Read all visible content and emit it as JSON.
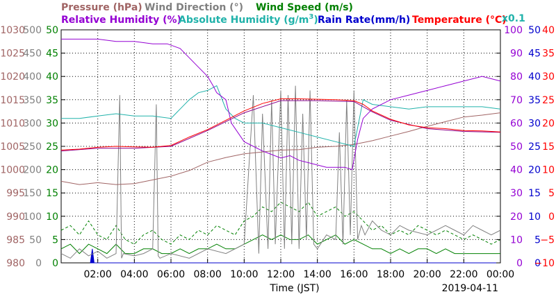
{
  "chart_data": {
    "type": "line",
    "header": {
      "row1": [
        {
          "text": "Pressure (hPa)",
          "color": "#a06464"
        },
        {
          "text": "Wind Direction (°)",
          "color": "#808080"
        },
        {
          "text": "Wind Speed (m/s)",
          "color": "#008000"
        }
      ],
      "row2": [
        {
          "text": "Relative Humidity (%)",
          "color": "#9400d3"
        },
        {
          "text": "Absolute Humidity (g/m",
          "sup": "3",
          "tail": ")",
          "color": "#20b2aa"
        },
        {
          "text": "Rain Rate(mm/h)",
          "color": "#0000cd"
        },
        {
          "text": "Temperature (°C)",
          "color": "#ff0000"
        }
      ],
      "multiplier": {
        "text": "x0.1",
        "color": "#20b2aa"
      }
    },
    "xlabel": "Time (JST)",
    "date": "2019-04-11",
    "xlim": [
      0,
      24
    ],
    "xticks": [
      {
        "t": 2,
        "label": "02:00"
      },
      {
        "t": 4,
        "label": "04:00"
      },
      {
        "t": 6,
        "label": "06:00"
      },
      {
        "t": 8,
        "label": "08:00"
      },
      {
        "t": 10,
        "label": "10:00"
      },
      {
        "t": 12,
        "label": "12:00"
      },
      {
        "t": 14,
        "label": "14:00"
      },
      {
        "t": 16,
        "label": "16:00"
      },
      {
        "t": 18,
        "label": "18:00"
      },
      {
        "t": 20,
        "label": "20:00"
      },
      {
        "t": 22,
        "label": "22:00"
      },
      {
        "t": 24,
        "label": "00:00"
      }
    ],
    "axes": {
      "pressure": {
        "color": "#a06464",
        "ticks": [
          "980",
          "985",
          "990",
          "995",
          "1000",
          "1005",
          "1010",
          "1015",
          "1020",
          "1025",
          "1030"
        ],
        "range": [
          980,
          1030
        ]
      },
      "wind_direction": {
        "color": "#808080",
        "ticks": [
          "0",
          "50",
          "100",
          "150",
          "200",
          "250",
          "300",
          "350",
          "400",
          "450",
          "500"
        ],
        "range": [
          0,
          500
        ]
      },
      "wind_speed": {
        "color": "#008000",
        "ticks": [
          "0",
          "5",
          "10",
          "15",
          "20",
          "25",
          "30",
          "35",
          "40",
          "45",
          "50"
        ],
        "range": [
          0,
          50
        ]
      },
      "relative_humidity": {
        "color": "#9400d3",
        "ticks": [
          "0",
          "10",
          "20",
          "30",
          "40",
          "50",
          "60",
          "70",
          "80",
          "90",
          "100"
        ],
        "range": [
          0,
          100
        ]
      },
      "rain_rate": {
        "color": "#0000cd",
        "ticks": [
          "0",
          "5",
          "10",
          "15",
          "20",
          "25",
          "30",
          "35",
          "40",
          "45",
          "50"
        ],
        "range": [
          0,
          50
        ]
      },
      "temperature": {
        "color": "#ff0000",
        "ticks": [
          "−10",
          "−5",
          "0",
          "5",
          "10",
          "15",
          "20",
          "25",
          "30",
          "35",
          "40"
        ],
        "range": [
          -10,
          40
        ]
      }
    },
    "grid": true,
    "series": [
      {
        "key": "pressure",
        "name": "Pressure (hPa)",
        "color": "#a06464",
        "axis": "pressure",
        "x": [
          0,
          1,
          2,
          3,
          4,
          5,
          6,
          7,
          8,
          9,
          10,
          11,
          12,
          13,
          14,
          15,
          16,
          17,
          18,
          19,
          20,
          21,
          22,
          23,
          24
        ],
        "y": [
          997.5,
          996.8,
          997.2,
          996.8,
          997.0,
          997.8,
          998.6,
          999.8,
          1001.6,
          1002.6,
          1003.4,
          1003.8,
          1004.2,
          1004.3,
          1004.8,
          1005.0,
          1005.4,
          1006.2,
          1007.2,
          1008.2,
          1009.3,
          1010.3,
          1011.3,
          1011.7,
          1012.2
        ]
      },
      {
        "key": "relative_humidity",
        "name": "Relative Humidity (%)",
        "color": "#9400d3",
        "axis": "relative_humidity",
        "x": [
          0,
          1,
          2,
          3,
          4,
          5,
          5.8,
          6.5,
          7.0,
          7.5,
          8.0,
          8.3,
          8.5,
          9.0,
          9.3,
          10.0,
          10.5,
          11.0,
          12.0,
          12.5,
          13.0,
          13.5,
          14.0,
          14.5,
          15.0,
          15.5,
          15.9,
          16.2,
          16.5,
          17,
          18,
          19,
          20,
          21,
          22,
          23,
          24
        ],
        "y": [
          96,
          96,
          96,
          95,
          95,
          94,
          94,
          92,
          88,
          84,
          80,
          76,
          73,
          70,
          60,
          52,
          50,
          48,
          45,
          46,
          44,
          43,
          42,
          41,
          41,
          41,
          40,
          53,
          62,
          66,
          70,
          72,
          74,
          76,
          78,
          80,
          78
        ]
      },
      {
        "key": "absolute_humidity",
        "name": "Absolute Humidity (g/m3) x0.1",
        "color": "#20b2aa",
        "axis": "relative_humidity",
        "x": [
          0,
          1,
          2,
          3,
          4,
          5,
          6,
          6.5,
          7,
          7.5,
          8,
          8.5,
          9,
          9.5,
          10,
          11,
          12,
          13,
          14,
          15,
          15.5,
          16,
          16.5,
          17,
          18,
          19,
          20,
          21,
          22,
          23,
          24
        ],
        "y": [
          62,
          62,
          63,
          64,
          63,
          63,
          62,
          66,
          70,
          73,
          74,
          76,
          66,
          62,
          60,
          60,
          58,
          56,
          54,
          52,
          51,
          50,
          70,
          68,
          67,
          66,
          67,
          67,
          67,
          67,
          66
        ]
      },
      {
        "key": "temperature",
        "name": "Temperature (°C)",
        "color": "#ff0000",
        "axis": "temperature",
        "x": [
          0,
          1,
          2,
          3,
          4,
          5,
          6,
          7,
          8,
          9,
          10,
          11,
          12,
          13,
          14,
          15,
          16,
          16.5,
          17,
          18,
          19,
          20,
          21,
          22,
          23,
          24
        ],
        "y": [
          14.2,
          14.4,
          14.8,
          15.0,
          14.9,
          14.8,
          15.2,
          17.0,
          18.6,
          20.6,
          22.6,
          24.2,
          25.2,
          25.2,
          25.1,
          25.0,
          24.8,
          24.0,
          22.6,
          20.8,
          19.6,
          19.0,
          18.8,
          18.4,
          18.3,
          18.1
        ]
      },
      {
        "key": "temperature_2",
        "name": "Temperature (°C)",
        "color": "#8b008b",
        "axis": "temperature",
        "x": [
          0,
          2,
          4,
          6,
          8,
          10,
          12,
          14,
          16,
          17,
          18,
          20,
          22,
          24
        ],
        "y": [
          14.0,
          14.6,
          14.6,
          15.0,
          18.4,
          22.2,
          24.8,
          24.8,
          24.6,
          22.4,
          20.6,
          18.8,
          18.2,
          18.0
        ]
      },
      {
        "key": "wind_direction",
        "name": "Wind Direction (°)",
        "color": "#808080",
        "axis": "wind_direction",
        "x": [
          0,
          0.5,
          1,
          1.5,
          2,
          2.5,
          3,
          3.2,
          3.3,
          3.4,
          4,
          4.5,
          5,
          5.2,
          5.3,
          5.4,
          6,
          7,
          8,
          9,
          10,
          10.5,
          10.8,
          11,
          11.3,
          11.5,
          11.7,
          12,
          12.2,
          12.4,
          12.6,
          12.8,
          13.0,
          13.2,
          13.4,
          13.6,
          13.8,
          14,
          14.5,
          15,
          15.2,
          15.4,
          15.6,
          15.8,
          16,
          16.2,
          16.4,
          16.6,
          17,
          17.5,
          18,
          18.5,
          19,
          20,
          21,
          21.5,
          22,
          22.5,
          23,
          23.5,
          24
        ],
        "y": [
          20,
          10,
          30,
          15,
          25,
          10,
          20,
          360,
          10,
          20,
          15,
          20,
          30,
          340,
          15,
          10,
          20,
          10,
          30,
          20,
          40,
          360,
          20,
          320,
          30,
          350,
          40,
          370,
          30,
          360,
          40,
          380,
          30,
          320,
          50,
          370,
          40,
          30,
          60,
          50,
          280,
          40,
          350,
          60,
          370,
          50,
          80,
          60,
          90,
          70,
          60,
          80,
          70,
          60,
          80,
          70,
          60,
          80,
          70,
          60,
          70
        ]
      },
      {
        "key": "wind_speed_max",
        "name": "Wind Speed (m/s)",
        "color": "#008000",
        "axis": "wind_speed",
        "dashed": true,
        "x": [
          0,
          0.5,
          1,
          1.5,
          2,
          2.5,
          3,
          3.5,
          4,
          4.5,
          5,
          5.5,
          6,
          6.5,
          7,
          7.5,
          8,
          8.5,
          9,
          9.5,
          10,
          10.5,
          11,
          11.5,
          12,
          12.5,
          13,
          13.5,
          14,
          14.5,
          15,
          15.5,
          16,
          16.5,
          17,
          17.5,
          18,
          18.5,
          19,
          19.5,
          20,
          20.5,
          21,
          21.5,
          22,
          22.5,
          23,
          23.5,
          24
        ],
        "y": [
          7,
          8,
          6,
          9,
          6,
          5,
          8,
          5,
          4,
          6,
          7,
          5,
          4,
          6,
          5,
          7,
          6,
          8,
          7,
          6,
          9,
          10,
          12,
          11,
          13,
          12,
          11,
          13,
          10,
          11,
          12,
          10,
          11,
          9,
          7,
          8,
          6,
          7,
          6,
          8,
          7,
          6,
          7,
          6,
          5,
          6,
          5,
          4,
          5
        ]
      },
      {
        "key": "wind_speed_avg",
        "name": "Wind Speed (m/s)",
        "color": "#008000",
        "axis": "wind_speed",
        "x": [
          0,
          0.5,
          1,
          1.5,
          2,
          2.5,
          3,
          3.5,
          4,
          4.5,
          5,
          5.5,
          6,
          6.5,
          7,
          7.5,
          8,
          8.5,
          9,
          9.5,
          10,
          10.5,
          11,
          11.5,
          12,
          12.5,
          13,
          13.5,
          14,
          14.5,
          15,
          15.5,
          16,
          16.5,
          17,
          17.5,
          18,
          18.5,
          19,
          19.5,
          20,
          20.5,
          21,
          21.5,
          22,
          22.5,
          23,
          23.5,
          24
        ],
        "y": [
          3,
          4,
          2,
          4,
          3,
          2,
          4,
          2,
          2,
          3,
          3,
          2,
          2,
          3,
          2,
          3,
          3,
          4,
          3,
          3,
          4,
          5,
          6,
          5,
          6,
          5,
          5,
          6,
          4,
          5,
          6,
          4,
          5,
          4,
          3,
          3,
          2,
          3,
          2,
          3,
          3,
          2,
          3,
          2,
          2,
          2,
          2,
          2,
          2
        ]
      },
      {
        "key": "rain_rate",
        "name": "Rain Rate(mm/h)",
        "color": "#0000cd",
        "axis": "rain_rate",
        "fill": true,
        "x": [
          1.6,
          1.7,
          1.8,
          24
        ],
        "y": [
          0,
          3,
          0,
          0
        ]
      }
    ]
  }
}
